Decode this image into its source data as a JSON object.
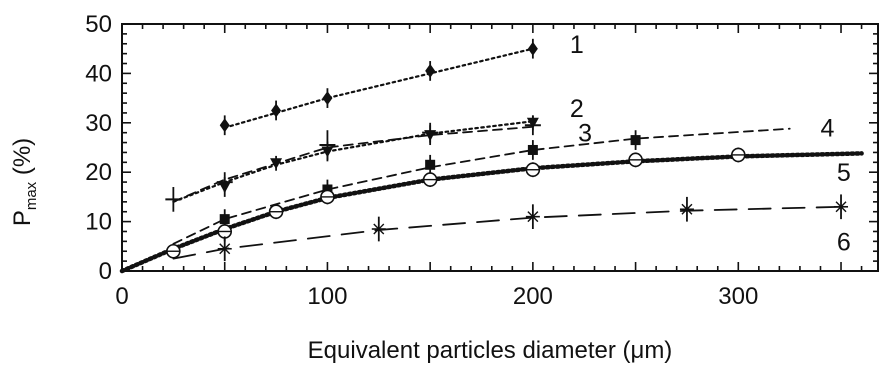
{
  "chart_data": {
    "type": "line",
    "title": "",
    "xlabel": "Equivalent particles diameter (μm)",
    "ylabel": {
      "main": "P",
      "sub": "max",
      "suffix": " (%)"
    },
    "xlim": [
      0,
      368
    ],
    "ylim": [
      0,
      50
    ],
    "x_ticks": [
      0,
      100,
      200,
      300
    ],
    "y_ticks": [
      0,
      10,
      20,
      30,
      40,
      50
    ],
    "x_minor_step": 10,
    "y_minor_step": 2,
    "grid": false,
    "legend": "inline labels at curve ends",
    "series": [
      {
        "name": "1",
        "marker": "diamond",
        "line": "dotted",
        "label_at": [
          218,
          46
        ],
        "points": [
          [
            50,
            29.5,
            2
          ],
          [
            75,
            32.5,
            2
          ],
          [
            100,
            35,
            2
          ],
          [
            150,
            40.5,
            2
          ],
          [
            200,
            45,
            2
          ]
        ],
        "fit": [
          [
            50,
            29
          ],
          [
            75,
            32
          ],
          [
            100,
            35
          ],
          [
            150,
            40
          ],
          [
            200,
            45
          ]
        ]
      },
      {
        "name": "2",
        "marker": "triangle-down",
        "line": "dotted",
        "label_at": [
          218,
          33
        ],
        "points": [
          [
            50,
            17,
            2
          ],
          [
            75,
            21.8,
            1.5
          ],
          [
            100,
            24.2,
            2
          ],
          [
            150,
            27.5,
            2
          ],
          [
            200,
            30,
            1.5
          ]
        ],
        "fit": [
          [
            25,
            14
          ],
          [
            50,
            18
          ],
          [
            75,
            21.5
          ],
          [
            100,
            24.2
          ],
          [
            150,
            27.8
          ],
          [
            200,
            30.3
          ]
        ]
      },
      {
        "name": "3",
        "marker": "plus",
        "line": "dashed",
        "label_at": [
          222,
          28
        ],
        "points": [
          [
            25,
            14.5,
            2.5
          ],
          [
            50,
            18,
            2
          ],
          [
            100,
            25.5,
            3
          ],
          [
            150,
            28,
            2
          ],
          [
            200,
            29.5,
            2
          ]
        ],
        "fit": [
          [
            25,
            14
          ],
          [
            50,
            18.5
          ],
          [
            100,
            25
          ],
          [
            150,
            27.5
          ],
          [
            200,
            29.2
          ]
        ]
      },
      {
        "name": "4",
        "marker": "square",
        "line": "dashed",
        "label_at": [
          340,
          29
        ],
        "points": [
          [
            50,
            10.5,
            2
          ],
          [
            100,
            16.5,
            2
          ],
          [
            150,
            21.5,
            2
          ],
          [
            200,
            24.5,
            2
          ],
          [
            250,
            26.5,
            2
          ]
        ],
        "fit": [
          [
            25,
            5.5
          ],
          [
            50,
            10.5
          ],
          [
            100,
            16.5
          ],
          [
            150,
            21
          ],
          [
            200,
            24.5
          ],
          [
            250,
            26.8
          ],
          [
            325,
            28.8
          ]
        ]
      },
      {
        "name": "5",
        "marker": "circle-plus",
        "line": "thick-dotted",
        "label_at": [
          348,
          20
        ],
        "points": [
          [
            25,
            4,
            1.5
          ],
          [
            50,
            8,
            2
          ],
          [
            75,
            12,
            1.5
          ],
          [
            100,
            15,
            1.5
          ],
          [
            150,
            18.5,
            1.5
          ],
          [
            200,
            20.5,
            1.5
          ],
          [
            250,
            22.5,
            1.5
          ],
          [
            300,
            23.5,
            1.5
          ]
        ],
        "fit": [
          [
            0,
            0
          ],
          [
            25,
            4.5
          ],
          [
            50,
            8.5
          ],
          [
            75,
            12
          ],
          [
            100,
            14.8
          ],
          [
            150,
            18.5
          ],
          [
            200,
            20.8
          ],
          [
            250,
            22.2
          ],
          [
            300,
            23.2
          ],
          [
            360,
            23.8
          ]
        ]
      },
      {
        "name": "6",
        "marker": "star",
        "line": "long-dashed",
        "label_at": [
          348,
          6
        ],
        "points": [
          [
            50,
            4.5,
            2.5
          ],
          [
            125,
            8.5,
            2.5
          ],
          [
            200,
            11,
            2.5
          ],
          [
            275,
            12.5,
            2.5
          ],
          [
            350,
            13,
            2.5
          ]
        ],
        "fit": [
          [
            25,
            2.5
          ],
          [
            50,
            4.5
          ],
          [
            125,
            8.3
          ],
          [
            200,
            10.8
          ],
          [
            275,
            12.2
          ],
          [
            350,
            13
          ]
        ]
      }
    ]
  }
}
